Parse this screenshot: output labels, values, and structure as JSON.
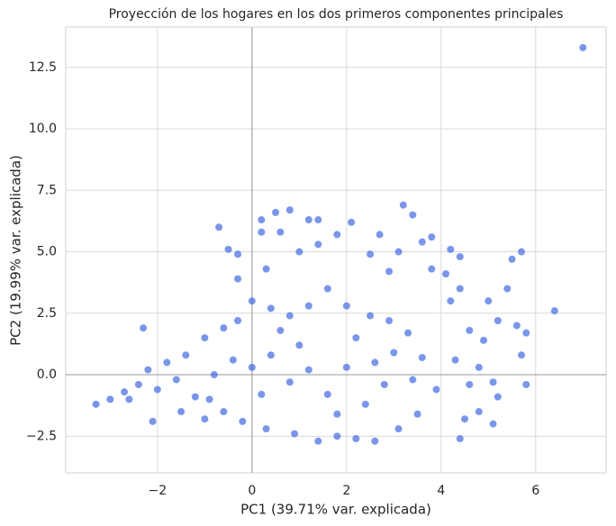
{
  "chart_data": {
    "type": "scatter",
    "title": "Proyección de los hogares en los dos primeros componentes principales",
    "x_label": "PC1 (39.71% var. explicada)",
    "y_label": "PC2 (19.99% var. explicada)",
    "xlim": [
      -3.94,
      7.49
    ],
    "ylim": [
      -3.99,
      14.14
    ],
    "xticks": [
      {
        "value": -2,
        "label": "−2"
      },
      0,
      2,
      4,
      6
    ],
    "yticks": [
      {
        "value": -2.5,
        "label": "−2.5"
      },
      {
        "value": 0,
        "label": "0.0"
      },
      2.5,
      {
        "value": 5,
        "label": "5.0"
      },
      7.5,
      {
        "value": 10,
        "label": "10.0"
      },
      12.5
    ],
    "grid": true,
    "zero_lines": true,
    "series": [
      {
        "color": "#4169e1",
        "x": [
          7.0,
          6.4,
          5.7,
          5.8,
          5.8,
          5.6,
          5.4,
          5.7,
          5.5,
          5.0,
          5.2,
          4.9,
          4.8,
          5.1,
          5.2,
          5.1,
          4.8,
          4.6,
          4.5,
          4.4,
          4.3,
          4.6,
          4.2,
          4.1,
          4.4,
          4.2,
          4.4,
          3.8,
          3.6,
          3.8,
          3.4,
          3.2,
          3.1,
          2.9,
          2.5,
          2.7,
          2.1,
          1.4,
          1.2,
          1.8,
          1.4,
          0.8,
          0.5,
          -0.7,
          -0.5,
          -0.3,
          0.2,
          0.2,
          0.6,
          0.3,
          1.0,
          -0.3,
          -2.3,
          -3.3,
          -3.0,
          -2.7,
          -2.4,
          -2.0,
          -2.1,
          -1.8,
          -1.4,
          -1.0,
          -1.5,
          -1.0,
          -0.6,
          -0.3,
          0.0,
          0.4,
          0.8,
          1.2,
          1.6,
          2.0,
          2.5,
          2.9,
          3.3,
          3.6,
          3.9,
          3.5,
          3.1,
          2.6,
          2.2,
          1.8,
          1.4,
          0.9,
          0.3,
          -0.2,
          -0.6,
          -1.2,
          -0.8,
          -0.4,
          0.0,
          0.4,
          0.8,
          1.2,
          1.6,
          2.0,
          2.4,
          2.8,
          3.0,
          0.2,
          -1.6,
          1.0,
          2.2,
          -0.9,
          0.6,
          1.8,
          2.6,
          3.4,
          -2.6,
          -2.2
        ],
        "y": [
          13.3,
          2.6,
          0.8,
          -0.4,
          1.7,
          2.0,
          3.5,
          5.0,
          4.7,
          3.0,
          2.2,
          1.4,
          0.3,
          -0.3,
          -0.9,
          -2.0,
          -1.5,
          -0.4,
          -1.8,
          -2.6,
          0.6,
          1.8,
          3.0,
          4.1,
          3.5,
          5.1,
          4.8,
          4.3,
          5.4,
          5.6,
          6.5,
          6.9,
          5.0,
          4.2,
          4.9,
          5.7,
          6.2,
          6.3,
          6.3,
          5.7,
          5.3,
          6.7,
          6.6,
          6.0,
          5.1,
          4.9,
          6.3,
          5.8,
          5.8,
          4.3,
          5.0,
          3.9,
          1.9,
          -1.2,
          -1.0,
          -0.7,
          -0.4,
          -0.6,
          -1.9,
          0.5,
          0.8,
          1.5,
          -1.5,
          -1.8,
          1.9,
          2.2,
          3.0,
          2.7,
          2.4,
          2.8,
          3.5,
          2.8,
          2.4,
          2.2,
          1.7,
          0.7,
          -0.6,
          -1.6,
          -2.2,
          -2.7,
          -2.6,
          -2.5,
          -2.7,
          -2.4,
          -2.2,
          -1.9,
          -1.5,
          -0.9,
          0.0,
          0.6,
          0.3,
          0.8,
          -0.3,
          0.2,
          -0.8,
          0.3,
          -1.2,
          -0.4,
          0.9,
          -0.8,
          -0.2,
          1.2,
          1.5,
          -1.0,
          1.8,
          -1.6,
          0.5,
          -0.2,
          -1.0,
          0.2
        ]
      }
    ]
  }
}
